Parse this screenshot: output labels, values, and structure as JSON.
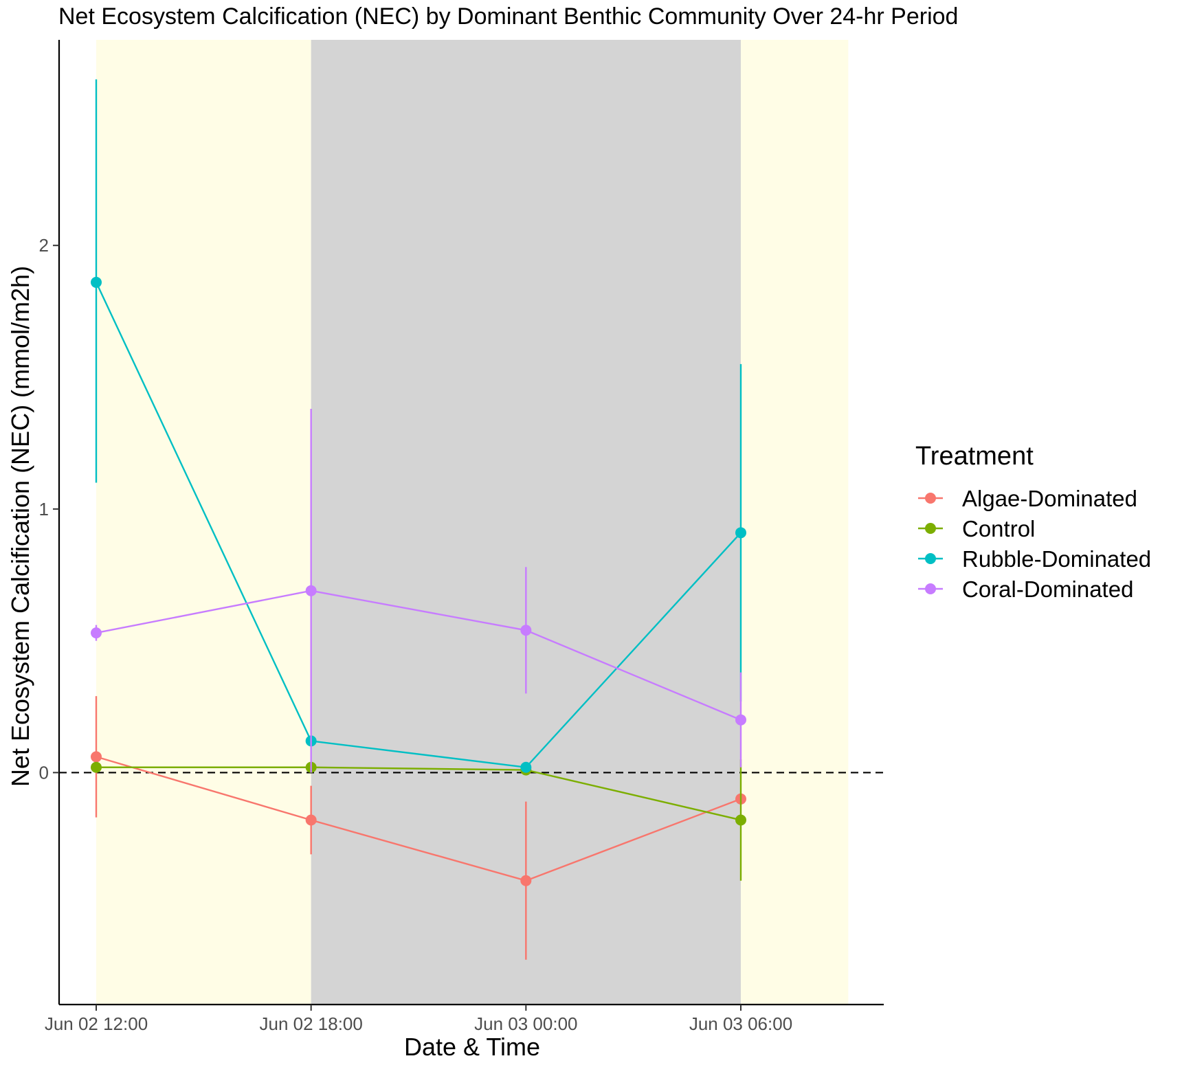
{
  "chart_data": {
    "type": "line",
    "title": "Net Ecosystem Calcification (NEC) by Dominant Benthic Community Over 24-hr Period",
    "xlabel": "Date & Time",
    "ylabel": "Net Ecosystem Calcification (NEC) (mmol/m2h)",
    "x_ticks": [
      "Jun 02 12:00",
      "Jun 02 18:00",
      "Jun 03 00:00",
      "Jun 03 06:00"
    ],
    "x_tick_hours": [
      0,
      6,
      12,
      18
    ],
    "xlim_hours": [
      -1,
      22
    ],
    "y_ticks": [
      0,
      1,
      2
    ],
    "ylim": [
      -0.88,
      2.78
    ],
    "reference_line": {
      "y": 0,
      "style": "dashed",
      "color": "#000000"
    },
    "shading": [
      {
        "from_hour": 0,
        "to_hour": 6,
        "period": "day",
        "color": "#FFFDE6"
      },
      {
        "from_hour": 6,
        "to_hour": 18,
        "period": "night",
        "color": "#D4D4D4"
      },
      {
        "from_hour": 18,
        "to_hour": 21,
        "period": "day",
        "color": "#FFFDE6"
      }
    ],
    "legend": {
      "title": "Treatment",
      "position": "right"
    },
    "series": [
      {
        "name": "Algae-Dominated",
        "color": "#F8766D",
        "x_hours": [
          0,
          6,
          12,
          18
        ],
        "values": [
          0.06,
          -0.18,
          -0.41,
          -0.1
        ],
        "error_low": [
          -0.17,
          -0.31,
          -0.71,
          -0.1
        ],
        "error_high": [
          0.29,
          -0.05,
          -0.11,
          -0.1
        ]
      },
      {
        "name": "Control",
        "color": "#7CAE00",
        "x_hours": [
          0,
          6,
          12,
          18
        ],
        "values": [
          0.02,
          0.02,
          0.01,
          -0.18
        ],
        "error_low": [
          0.02,
          0.02,
          0.01,
          -0.41
        ],
        "error_high": [
          0.02,
          0.02,
          0.01,
          0.05
        ]
      },
      {
        "name": "Rubble-Dominated",
        "color": "#00BFC4",
        "x_hours": [
          0,
          6,
          12,
          18
        ],
        "values": [
          1.86,
          0.12,
          0.02,
          0.91
        ],
        "error_low": [
          1.1,
          0.12,
          0.02,
          0.27
        ],
        "error_high": [
          2.63,
          0.12,
          0.02,
          1.55
        ]
      },
      {
        "name": "Coral-Dominated",
        "color": "#C77CFF",
        "x_hours": [
          0,
          6,
          12,
          18
        ],
        "values": [
          0.53,
          0.69,
          0.54,
          0.2
        ],
        "error_low": [
          0.5,
          0.0,
          0.3,
          0.02
        ],
        "error_high": [
          0.56,
          1.38,
          0.78,
          0.38
        ]
      }
    ]
  }
}
